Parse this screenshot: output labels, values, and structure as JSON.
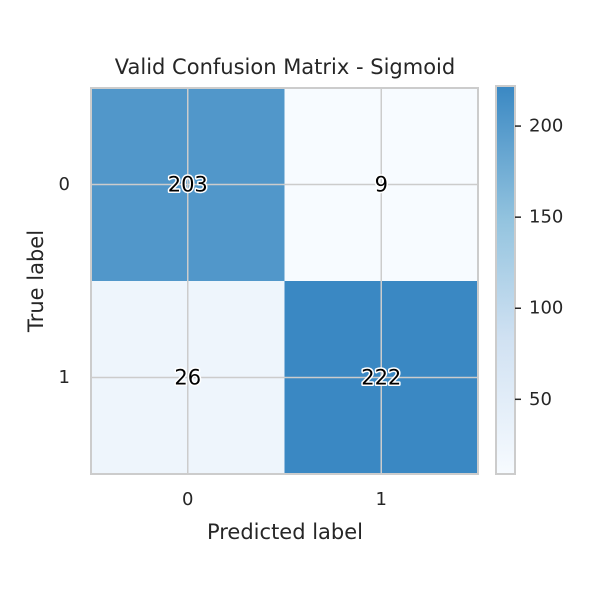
{
  "chart_data": {
    "type": "heatmap",
    "title": "Valid Confusion Matrix - Sigmoid",
    "xlabel": "Predicted label",
    "ylabel": "True label",
    "x_categories": [
      "0",
      "1"
    ],
    "y_categories": [
      "0",
      "1"
    ],
    "values": [
      [
        203,
        9
      ],
      [
        26,
        222
      ]
    ],
    "colorbar": {
      "range": [
        9,
        222
      ],
      "ticks": [
        50,
        100,
        150,
        200
      ],
      "tick_labels": [
        "50",
        "100",
        "150",
        "200"
      ]
    },
    "colormap": {
      "low": "#f7fbff",
      "mid1": "#c6dbef",
      "mid2": "#6baed6",
      "high": "#3a88c3"
    },
    "grid": true
  }
}
